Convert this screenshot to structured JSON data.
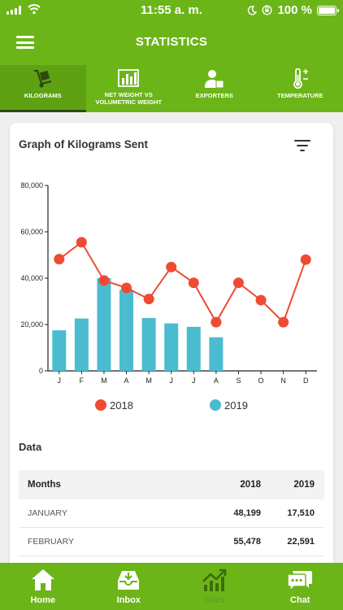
{
  "status_bar": {
    "time": "11:55 a. m.",
    "battery": "100 %"
  },
  "header": {
    "title": "STATISTICS",
    "menu_icon": "hamburger-menu-icon"
  },
  "tabs": [
    {
      "line1": "KILOGRAMS",
      "line2": "",
      "icon": "hand-truck-icon",
      "active": true
    },
    {
      "line1": "NET WEIGHT VS",
      "line2": "VOLUMETRIC WEIGHT",
      "icon": "bar-chart-icon",
      "active": false
    },
    {
      "line1": "EXPORTERS",
      "line2": "",
      "icon": "exporter-person-icon",
      "active": false
    },
    {
      "line1": "TEMPERATURE",
      "line2": "",
      "icon": "thermometer-icon",
      "active": false
    }
  ],
  "card": {
    "title": "Graph of Kilograms Sent",
    "filter_icon": "filter-icon"
  },
  "chart_data": {
    "type": "bar",
    "categories": [
      "J",
      "F",
      "M",
      "A",
      "M",
      "J",
      "J",
      "A",
      "S",
      "O",
      "N",
      "D"
    ],
    "ylim": [
      0,
      80000
    ],
    "yticks": [
      "0",
      "20,000",
      "40,000",
      "60,000",
      "80,000"
    ],
    "ytick_values": [
      0,
      20000,
      40000,
      60000,
      80000
    ],
    "series": [
      {
        "name": "2018",
        "type": "line",
        "color": "#ee4b33",
        "values": [
          48199,
          55478,
          39000,
          35800,
          31000,
          44800,
          38000,
          21000,
          38000,
          30500,
          21000,
          48000
        ]
      },
      {
        "name": "2019",
        "type": "bar",
        "color": "#4bbccf",
        "values": [
          17510,
          22591,
          40000,
          35000,
          22800,
          20500,
          19000,
          14500,
          null,
          null,
          null,
          null
        ]
      }
    ],
    "legend": "bottom"
  },
  "data_section": {
    "title": "Data",
    "headers": {
      "months": "Months",
      "col_a": "2018",
      "col_b": "2019"
    },
    "rows": [
      {
        "month": "JANUARY",
        "a": "48,199",
        "b": "17,510"
      },
      {
        "month": "FEBRUARY",
        "a": "55,478",
        "b": "22,591"
      }
    ]
  },
  "bottom_nav": [
    {
      "label": "Home",
      "icon": "home-icon",
      "active": false
    },
    {
      "label": "Inbox",
      "icon": "inbox-icon",
      "active": false
    },
    {
      "label": "Stats",
      "icon": "stats-trend-icon",
      "active": true
    },
    {
      "label": "Chat",
      "icon": "chat-icon",
      "active": false
    }
  ]
}
